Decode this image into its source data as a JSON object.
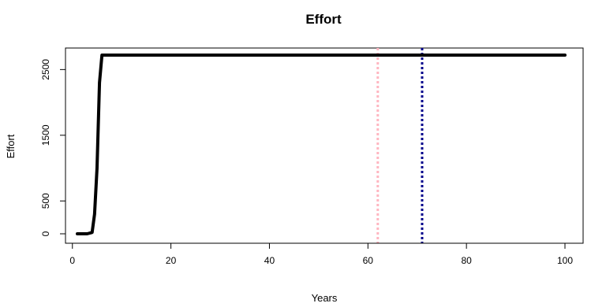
{
  "chart_data": {
    "type": "line",
    "title": "Effort",
    "xlabel": "Years",
    "ylabel": "Effort",
    "xlim": [
      1,
      100
    ],
    "ylim": [
      0,
      2720
    ],
    "x_ticks": [
      0,
      20,
      40,
      60,
      80,
      100
    ],
    "y_ticks": [
      0,
      500,
      1500,
      2500
    ],
    "grid": false,
    "series": [
      {
        "color": "#000000",
        "x": [
          1,
          2,
          3,
          4,
          4.5,
          5,
          5.5,
          6,
          7,
          10,
          20,
          30,
          40,
          50,
          60,
          70,
          80,
          90,
          100
        ],
        "y": [
          0,
          0,
          0,
          20,
          300,
          1000,
          2300,
          2720,
          2720,
          2720,
          2720,
          2720,
          2720,
          2720,
          2720,
          2720,
          2720,
          2720,
          2720
        ]
      }
    ],
    "vlines": [
      {
        "x": 62,
        "color": "#FFB6C1",
        "style": "dotted"
      },
      {
        "x": 71,
        "color": "#00008B",
        "style": "dotted"
      }
    ]
  }
}
